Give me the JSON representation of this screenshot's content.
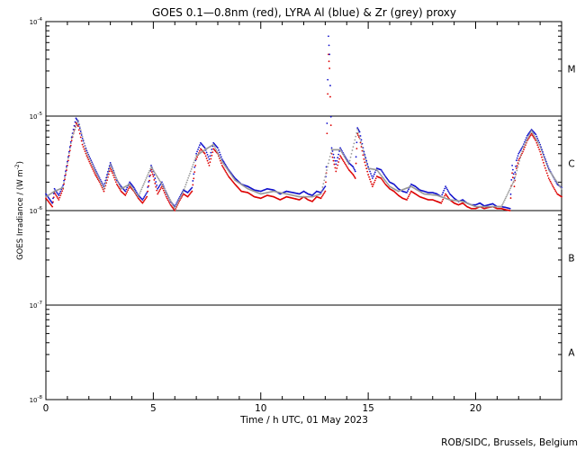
{
  "chart_data": {
    "type": "scatter",
    "title": "GOES 0.1—0.8nm (red), LYRA Al (blue) & Zr (grey) proxy",
    "xlabel": "Time / h UTC, 01 May 2023",
    "ylabel_prefix": "GOES Irradiance / (W m",
    "ylabel_exp": "-2",
    "ylabel_suffix": ")",
    "credit": "ROB/SIDC, Brussels, Belgium",
    "x_scale": "linear",
    "y_scale": "log",
    "xlim": [
      0,
      24
    ],
    "ylim": [
      1e-08,
      0.0001
    ],
    "x_ticks": [
      0,
      5,
      10,
      15,
      20
    ],
    "y_ticks": [
      {
        "value": 1e-08,
        "base": "10",
        "exp": "-8"
      },
      {
        "value": 1e-07,
        "base": "10",
        "exp": "-7"
      },
      {
        "value": 1e-06,
        "base": "10",
        "exp": "-6"
      },
      {
        "value": 1e-05,
        "base": "10",
        "exp": "-5"
      },
      {
        "value": 0.0001,
        "base": "10",
        "exp": "-4"
      }
    ],
    "reference_lines": [
      1e-07,
      1e-06,
      1e-05
    ],
    "flare_classes": [
      {
        "label": "A",
        "value": 3.16e-08
      },
      {
        "label": "B",
        "value": 3.16e-07
      },
      {
        "label": "C",
        "value": 3.16e-06
      },
      {
        "label": "M",
        "value": 3.16e-05
      }
    ],
    "grid": false,
    "series": [
      {
        "name": "GOES 0.1—0.8nm",
        "color": "#dd0000",
        "x": [
          0.0,
          0.3,
          0.4,
          0.6,
          0.8,
          1.0,
          1.2,
          1.4,
          1.5,
          1.7,
          1.9,
          2.1,
          2.3,
          2.5,
          2.7,
          2.85,
          3.0,
          3.1,
          3.3,
          3.5,
          3.7,
          3.9,
          4.1,
          4.3,
          4.5,
          4.7,
          4.9,
          5.0,
          5.2,
          5.4,
          5.6,
          5.8,
          6.0,
          6.2,
          6.4,
          6.6,
          6.8,
          7.0,
          7.2,
          7.4,
          7.6,
          7.8,
          8.0,
          8.2,
          8.5,
          8.8,
          9.1,
          9.4,
          9.7,
          10.0,
          10.3,
          10.6,
          10.9,
          11.2,
          11.5,
          11.8,
          12.0,
          12.2,
          12.4,
          12.6,
          12.8,
          13.0,
          13.05,
          13.15,
          13.2,
          13.3,
          13.5,
          13.7,
          13.9,
          14.1,
          14.3,
          14.4,
          14.5,
          14.6,
          14.8,
          15.0,
          15.2,
          15.4,
          15.6,
          15.8,
          16.0,
          16.2,
          16.4,
          16.6,
          16.8,
          17.0,
          17.2,
          17.4,
          17.6,
          17.8,
          18.0,
          18.2,
          18.4,
          18.6,
          18.8,
          19.0,
          19.2,
          19.4,
          19.6,
          19.8,
          20.0,
          20.2,
          20.4,
          20.6,
          20.8,
          21.0,
          21.2,
          21.4,
          21.6,
          21.7,
          21.8,
          21.9,
          22.0,
          22.2,
          22.4,
          22.6,
          22.8,
          23.0,
          23.2,
          23.4,
          23.6,
          23.8,
          24.0
        ],
        "y": [
          1.35e-06,
          1.1e-06,
          1.55e-06,
          1.3e-06,
          1.7e-06,
          3e-06,
          5.5e-06,
          8.5e-06,
          7.8e-06,
          5e-06,
          3.8e-06,
          3e-06,
          2.4e-06,
          2e-06,
          1.6e-06,
          2.1e-06,
          2.8e-06,
          2.5e-06,
          1.9e-06,
          1.6e-06,
          1.45e-06,
          1.8e-06,
          1.6e-06,
          1.35e-06,
          1.2e-06,
          1.4e-06,
          2.7e-06,
          2.3e-06,
          1.5e-06,
          1.8e-06,
          1.4e-06,
          1.15e-06,
          1e-06,
          1.25e-06,
          1.5e-06,
          1.4e-06,
          1.6e-06,
          3.5e-06,
          4.5e-06,
          4e-06,
          3e-06,
          4.5e-06,
          4e-06,
          3e-06,
          2.3e-06,
          1.9e-06,
          1.6e-06,
          1.55e-06,
          1.4e-06,
          1.35e-06,
          1.45e-06,
          1.4e-06,
          1.3e-06,
          1.4e-06,
          1.35e-06,
          1.3e-06,
          1.4e-06,
          1.3e-06,
          1.25e-06,
          1.4e-06,
          1.35e-06,
          1.6e-06,
          2.5e-06,
          4.5e-05,
          3.2e-05,
          4e-06,
          2.6e-06,
          3.8e-06,
          3.2e-06,
          2.7e-06,
          2.4e-06,
          2.2e-06,
          6.5e-06,
          5.8e-06,
          3.5e-06,
          2.4e-06,
          1.8e-06,
          2.3e-06,
          2.2e-06,
          1.9e-06,
          1.7e-06,
          1.6e-06,
          1.45e-06,
          1.35e-06,
          1.3e-06,
          1.6e-06,
          1.5e-06,
          1.4e-06,
          1.35e-06,
          1.3e-06,
          1.3e-06,
          1.25e-06,
          1.2e-06,
          1.5e-06,
          1.3e-06,
          1.2e-06,
          1.15e-06,
          1.2e-06,
          1.1e-06,
          1.05e-06,
          1.05e-06,
          1.1e-06,
          1.05e-06,
          1.08e-06,
          1.1e-06,
          1.05e-06,
          1.05e-06,
          1.02e-06,
          1e-06,
          2.5e-06,
          1.8e-06,
          2.8e-06,
          3.4e-06,
          4.2e-06,
          5.5e-06,
          6.5e-06,
          5.5e-06,
          4.2e-06,
          3e-06,
          2.2e-06,
          1.8e-06,
          1.5e-06,
          1.4e-06
        ]
      },
      {
        "name": "LYRA Al",
        "color": "#1010cc",
        "x": [
          0.0,
          0.3,
          0.4,
          0.6,
          0.8,
          1.0,
          1.2,
          1.4,
          1.5,
          1.7,
          1.9,
          2.1,
          2.3,
          2.5,
          2.7,
          2.85,
          3.0,
          3.1,
          3.3,
          3.5,
          3.7,
          3.9,
          4.1,
          4.3,
          4.5,
          4.7,
          4.9,
          5.0,
          5.2,
          5.4,
          5.6,
          5.8,
          6.0,
          6.2,
          6.4,
          6.6,
          6.8,
          7.0,
          7.2,
          7.4,
          7.6,
          7.8,
          8.0,
          8.2,
          8.5,
          8.8,
          9.1,
          9.4,
          9.7,
          10.0,
          10.3,
          10.6,
          10.9,
          11.2,
          11.5,
          11.8,
          12.0,
          12.2,
          12.4,
          12.6,
          12.8,
          13.0,
          13.05,
          13.15,
          13.2,
          13.3,
          13.5,
          13.7,
          13.9,
          14.1,
          14.3,
          14.4,
          14.5,
          14.6,
          14.8,
          15.0,
          15.2,
          15.4,
          15.6,
          15.8,
          16.0,
          16.2,
          16.4,
          16.6,
          16.8,
          17.0,
          17.2,
          17.4,
          17.6,
          17.8,
          18.0,
          18.2,
          18.4,
          18.6,
          18.8,
          19.0,
          19.2,
          19.4,
          19.6,
          19.8,
          20.0,
          20.2,
          20.4,
          20.6,
          20.8,
          21.0,
          21.2,
          21.4,
          21.6,
          21.7,
          21.8,
          21.9,
          22.0,
          22.2,
          22.4,
          22.6,
          22.8,
          23.0,
          23.2,
          23.4,
          23.6,
          23.8,
          24.0
        ],
        "y": [
          1.5e-06,
          1.2e-06,
          1.7e-06,
          1.45e-06,
          1.85e-06,
          3.3e-06,
          6e-06,
          9.5e-06,
          8.8e-06,
          5.8e-06,
          4.3e-06,
          3.4e-06,
          2.7e-06,
          2.2e-06,
          1.8e-06,
          2.4e-06,
          3.2e-06,
          2.8e-06,
          2.1e-06,
          1.8e-06,
          1.6e-06,
          2e-06,
          1.75e-06,
          1.45e-06,
          1.3e-06,
          1.55e-06,
          3e-06,
          2.6e-06,
          1.7e-06,
          2e-06,
          1.55e-06,
          1.25e-06,
          1.1e-06,
          1.35e-06,
          1.65e-06,
          1.55e-06,
          1.75e-06,
          4e-06,
          5.2e-06,
          4.6e-06,
          3.5e-06,
          5.2e-06,
          4.6e-06,
          3.5e-06,
          2.7e-06,
          2.2e-06,
          1.9e-06,
          1.8e-06,
          1.65e-06,
          1.6e-06,
          1.7e-06,
          1.65e-06,
          1.5e-06,
          1.6e-06,
          1.55e-06,
          1.5e-06,
          1.6e-06,
          1.5e-06,
          1.45e-06,
          1.6e-06,
          1.55e-06,
          1.8e-06,
          2.9e-06,
          7e-05,
          4.5e-05,
          4.6e-06,
          3.1e-06,
          4.6e-06,
          3.8e-06,
          3.2e-06,
          2.9e-06,
          2.6e-06,
          7.5e-06,
          6.8e-06,
          4.2e-06,
          2.9e-06,
          2.2e-06,
          2.8e-06,
          2.7e-06,
          2.3e-06,
          2e-06,
          1.9e-06,
          1.7e-06,
          1.6e-06,
          1.55e-06,
          1.9e-06,
          1.8e-06,
          1.65e-06,
          1.6e-06,
          1.55e-06,
          1.55e-06,
          1.5e-06,
          1.4e-06,
          1.8e-06,
          1.5e-06,
          1.35e-06,
          1.25e-06,
          1.3e-06,
          1.2e-06,
          1.15e-06,
          1.15e-06,
          1.2e-06,
          1.12e-06,
          1.15e-06,
          1.18e-06,
          1.1e-06,
          1.1e-06,
          1.08e-06,
          1.05e-06,
          3e-06,
          2.2e-06,
          3.4e-06,
          4e-06,
          4.8e-06,
          6.2e-06,
          7.2e-06,
          6.4e-06,
          5e-06,
          3.7e-06,
          2.8e-06,
          2.3e-06,
          1.9e-06,
          1.75e-06
        ]
      },
      {
        "name": "Zr",
        "color": "#999999",
        "x": [
          0.0,
          0.4,
          0.8,
          1.2,
          1.5,
          1.9,
          2.3,
          2.7,
          3.0,
          3.5,
          3.9,
          4.3,
          4.9,
          5.4,
          6.0,
          6.4,
          7.0,
          7.4,
          7.8,
          8.2,
          8.8,
          9.4,
          10.0,
          10.6,
          11.2,
          11.8,
          12.4,
          12.8,
          13.3,
          13.7,
          14.1,
          14.5,
          15.0,
          15.4,
          16.0,
          16.4,
          17.0,
          17.6,
          18.2,
          18.8,
          19.4,
          20.0,
          20.6,
          21.2,
          21.8,
          22.2,
          22.6,
          23.0,
          23.4,
          24.0
        ],
        "y": [
          1.4e-06,
          1.6e-06,
          1.75e-06,
          5.8e-06,
          9e-06,
          4.1e-06,
          2.6e-06,
          1.7e-06,
          3.1e-06,
          1.7e-06,
          1.9e-06,
          1.4e-06,
          2.9e-06,
          1.9e-06,
          1.05e-06,
          1.6e-06,
          3.8e-06,
          4.4e-06,
          5e-06,
          3.3e-06,
          2.1e-06,
          1.7e-06,
          1.5e-06,
          1.6e-06,
          1.5e-06,
          1.4e-06,
          1.4e-06,
          1.5e-06,
          4.4e-06,
          4.4e-06,
          3.1e-06,
          7.2e-06,
          2.8e-06,
          2.7e-06,
          1.8e-06,
          1.6e-06,
          1.8e-06,
          1.5e-06,
          1.45e-06,
          1.3e-06,
          1.25e-06,
          1.1e-06,
          1.1e-06,
          1.1e-06,
          2.1e-06,
          4.6e-06,
          7e-06,
          4.8e-06,
          2.7e-06,
          1.7e-06
        ]
      }
    ]
  }
}
